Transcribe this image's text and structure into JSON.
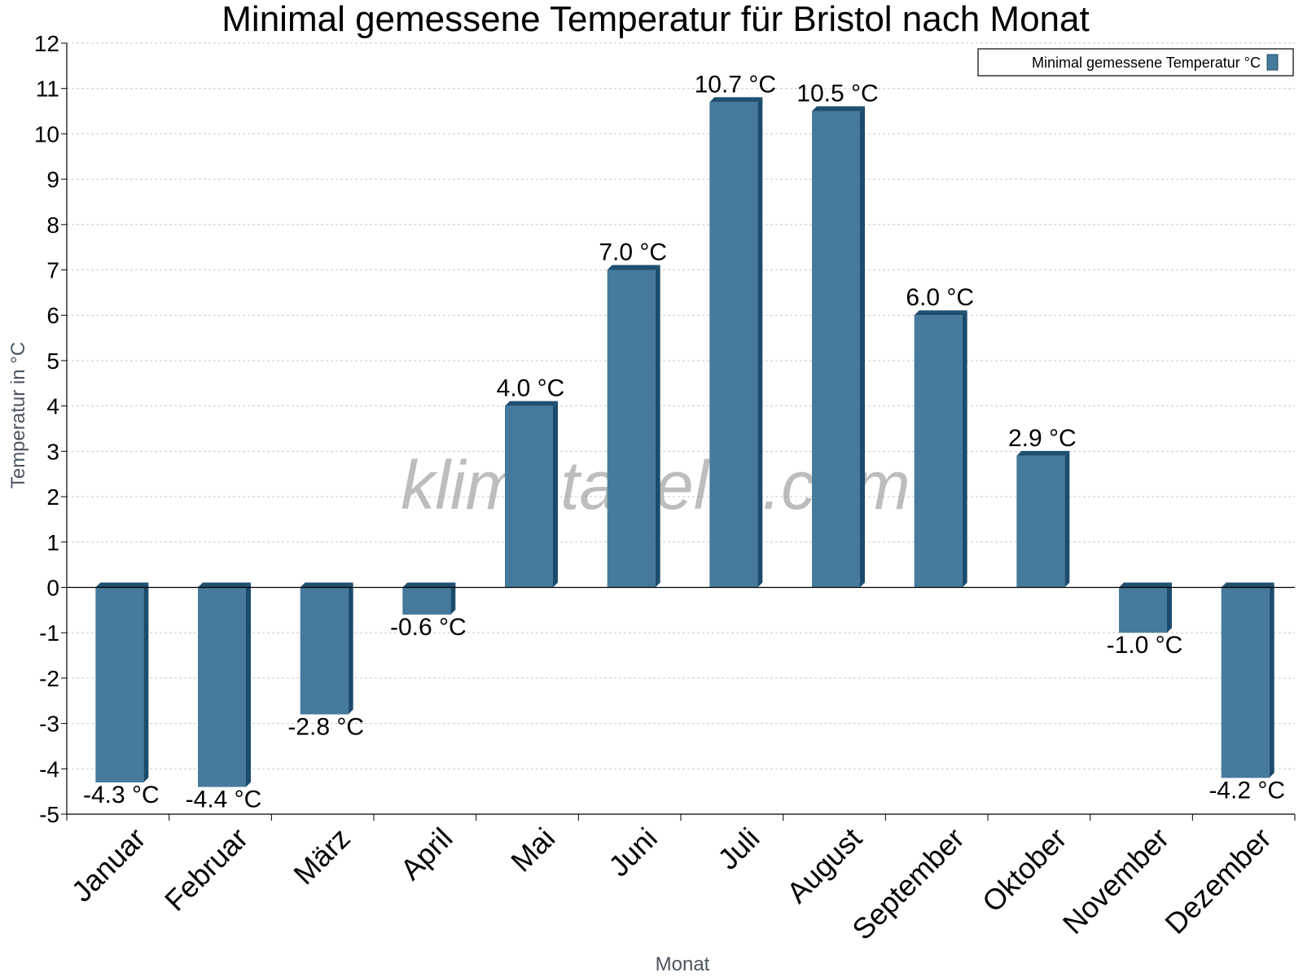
{
  "chart_data": {
    "type": "bar",
    "title": "Minimal gemessene Temperatur für Bristol nach Monat",
    "xlabel": "Monat",
    "ylabel": "Temperatur in °C",
    "categories": [
      "Januar",
      "Februar",
      "März",
      "April",
      "Mai",
      "Juni",
      "Juli",
      "August",
      "September",
      "Oktober",
      "November",
      "Dezember"
    ],
    "series": [
      {
        "name": "Minimal gemessene Temperatur °C",
        "values": [
          -4.3,
          -4.4,
          -2.8,
          -0.6,
          4.0,
          7.0,
          10.7,
          10.5,
          6.0,
          2.9,
          -1.0,
          -4.2
        ]
      }
    ],
    "value_labels": [
      "-4.3 °C",
      "-4.4 °C",
      "-2.8 °C",
      "-0.6 °C",
      "4.0 °C",
      "7.0 °C",
      "10.7 °C",
      "10.5 °C",
      "6.0 °C",
      "2.9 °C",
      "-1.0 °C",
      "-4.2 °C"
    ],
    "ylim": [
      -5,
      12
    ],
    "yticks": [
      12,
      11,
      10,
      9,
      8,
      7,
      6,
      5,
      4,
      3,
      2,
      1,
      0,
      -1,
      -2,
      -3,
      -4,
      -5
    ],
    "grid": true,
    "legend_position": "top-right",
    "watermark": "klimatabelle.com",
    "colors": {
      "bar_front": "#457a9c",
      "bar_side": "#1c4c6d",
      "bar_top": "#1f4f70",
      "grid": "#c8c8c8",
      "axis": "#000000"
    }
  }
}
